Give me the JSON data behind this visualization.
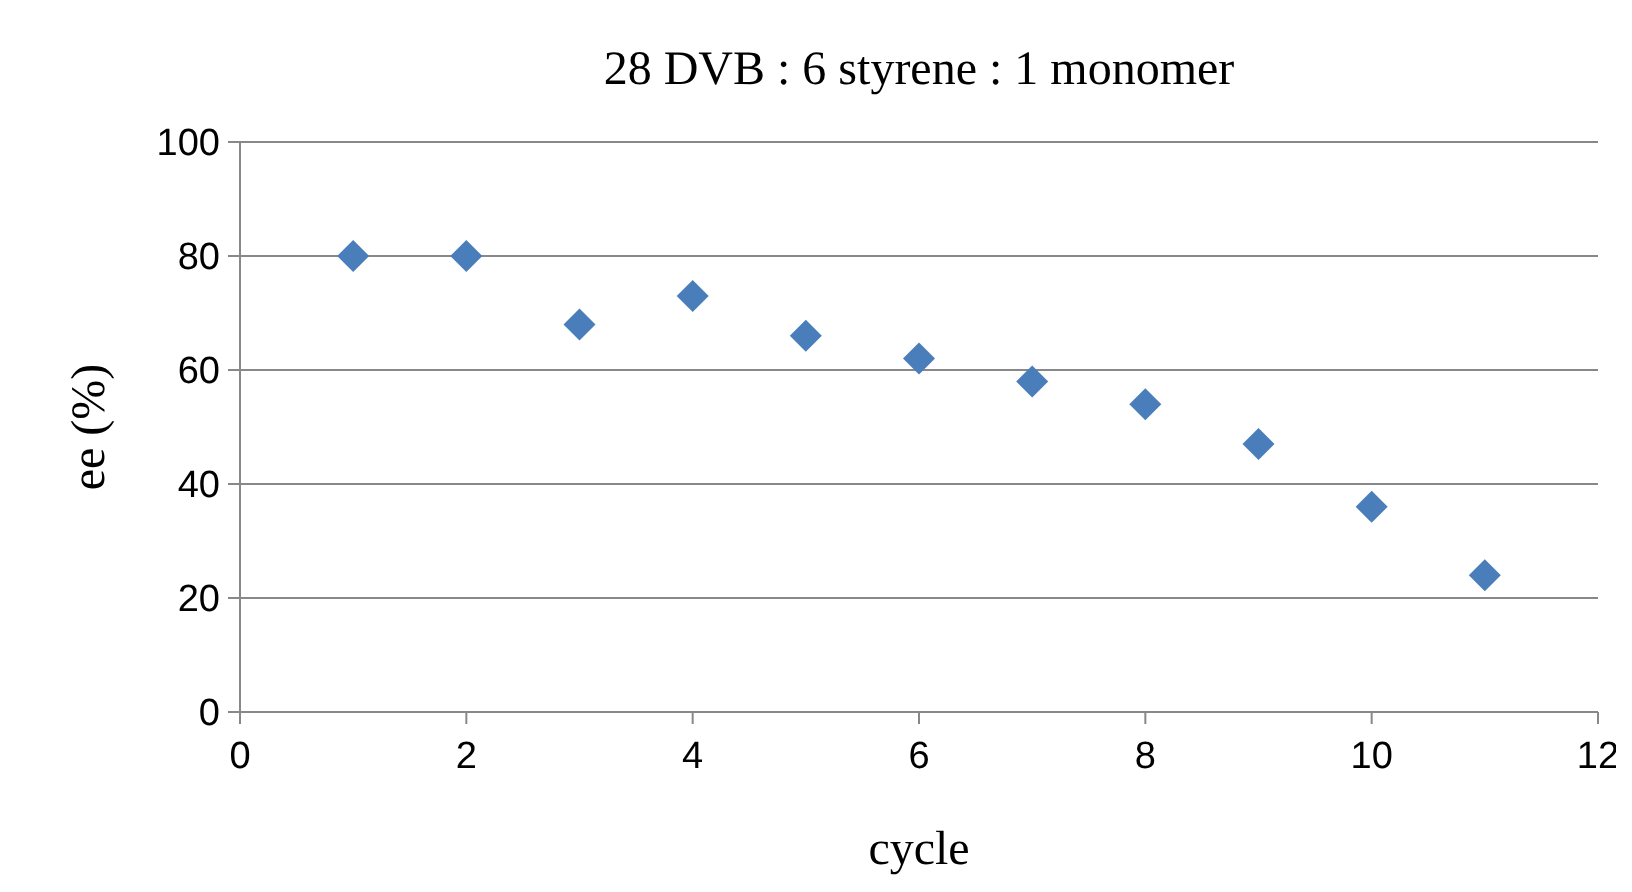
{
  "chart_data": {
    "type": "scatter",
    "title": "28 DVB : 6 styrene : 1 monomer",
    "xlabel": "cycle",
    "ylabel": "ee (%)",
    "x": [
      1,
      2,
      3,
      4,
      5,
      6,
      7,
      8,
      9,
      10,
      11
    ],
    "series": [
      {
        "color": "#4a7ebb",
        "values": [
          80,
          80,
          68,
          73,
          66,
          62,
          58,
          54,
          47,
          36,
          24
        ]
      }
    ],
    "xlim": [
      0,
      12
    ],
    "xticks": [
      0,
      2,
      4,
      6,
      8,
      10,
      12
    ],
    "ylim": [
      0,
      100
    ],
    "yticks": [
      0,
      20,
      40,
      60,
      80,
      100
    ],
    "grid": "y",
    "marker": "diamond"
  }
}
